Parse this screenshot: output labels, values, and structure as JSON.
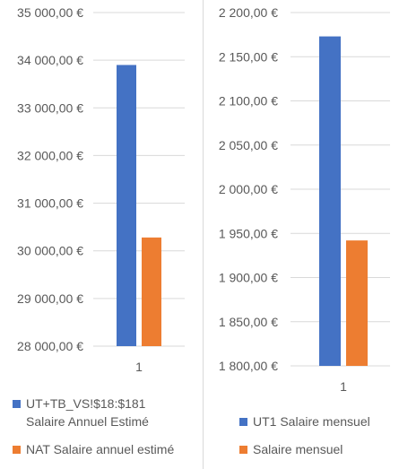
{
  "chart_data": [
    {
      "type": "bar",
      "categories": [
        "1"
      ],
      "series": [
        {
          "name": "UT+TB_VS!$18:$181\nSalaire Annuel Estimé",
          "values": [
            33900
          ],
          "color": "#4472C4"
        },
        {
          "name": "NAT Salaire annuel estimé",
          "values": [
            30280
          ],
          "color": "#ED7D31"
        }
      ],
      "ylim": [
        28000,
        35000
      ],
      "yticks": [
        28000,
        29000,
        30000,
        31000,
        32000,
        33000,
        34000,
        35000
      ],
      "ytick_labels": [
        "28 000,00 €",
        "29 000,00 €",
        "30 000,00 €",
        "31 000,00 €",
        "32 000,00 €",
        "33 000,00 €",
        "34 000,00 €",
        "35 000,00 €"
      ],
      "grid": true,
      "legend": "bottom"
    },
    {
      "type": "bar",
      "categories": [
        "1"
      ],
      "series": [
        {
          "name": "UT1 Salaire mensuel",
          "values": [
            2173
          ],
          "color": "#4472C4"
        },
        {
          "name": "Salaire mensuel",
          "values": [
            1942
          ],
          "color": "#ED7D31"
        }
      ],
      "ylim": [
        1800,
        2200
      ],
      "yticks": [
        1800,
        1850,
        1900,
        1950,
        2000,
        2050,
        2100,
        2150,
        2200
      ],
      "ytick_labels": [
        "1 800,00 €",
        "1 850,00 €",
        "1 900,00 €",
        "1 950,00 €",
        "2 000,00 €",
        "2 050,00 €",
        "2 100,00 €",
        "2 150,00 €",
        "2 200,00 €"
      ],
      "grid": true,
      "legend": "bottom"
    }
  ]
}
